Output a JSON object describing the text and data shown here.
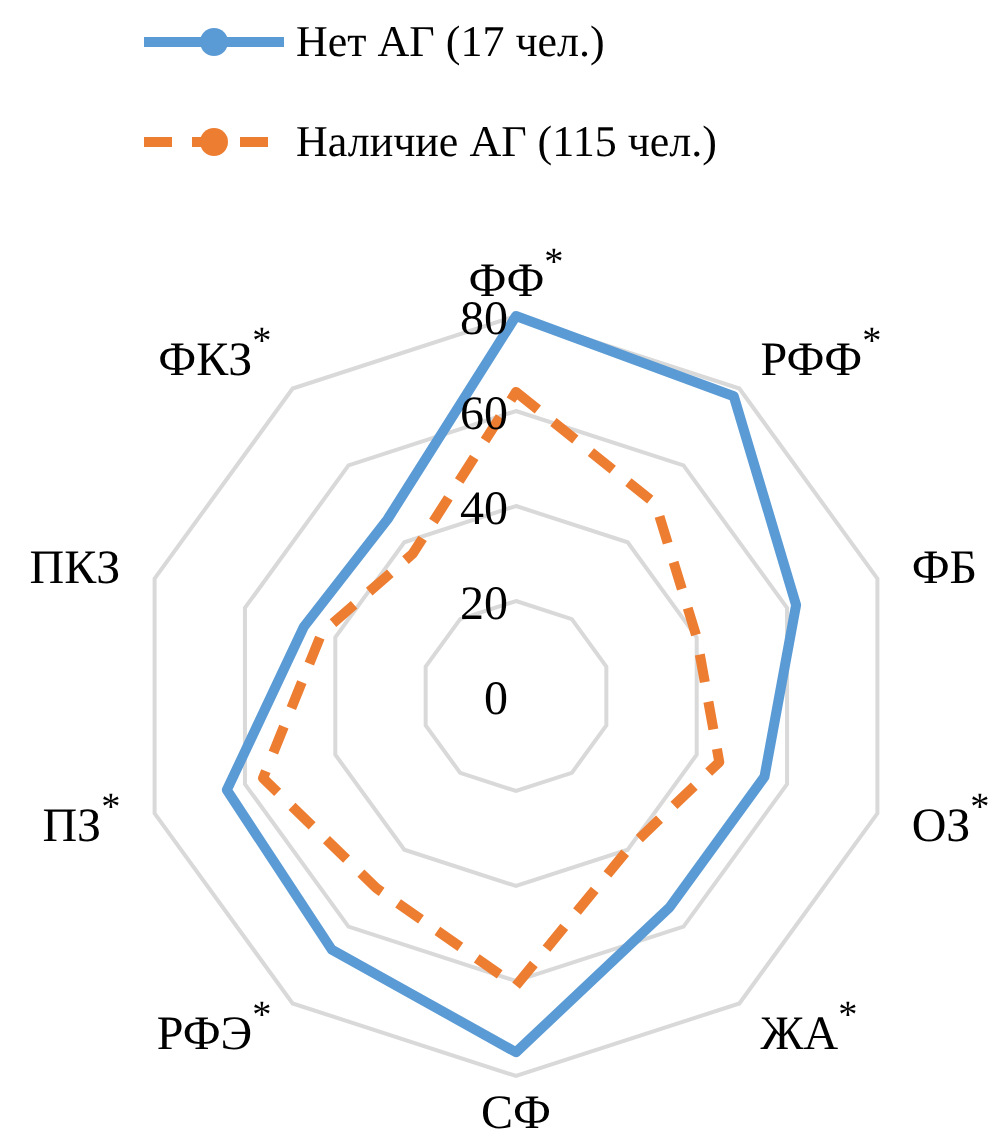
{
  "chart_data": {
    "type": "radar",
    "categories": [
      "ФФ$^{*}$",
      "РФФ$^{*}$",
      "ФБ",
      "ОЗ$^{*}$",
      "ЖА$^{*}$",
      "СФ",
      "РФЭ$^{*}$",
      "ПЗ$^{*}$",
      "ПКЗ",
      "ФКЗ$^{*}$"
    ],
    "series": [
      {
        "name": "Нет АГ (17 чел.)",
        "color": "#5b9bd5",
        "line_style": "solid",
        "values": [
          80,
          78,
          62,
          55,
          55,
          75,
          66,
          64,
          47,
          46
        ]
      },
      {
        "name": "Наличие АГ (115 чел.)",
        "color": "#ed7d31",
        "line_style": "dashed",
        "values": [
          64,
          50,
          40,
          45,
          40,
          61,
          50,
          56,
          43,
          37
        ]
      }
    ],
    "ylim": [
      0,
      80
    ],
    "yticks": [
      0,
      20,
      40,
      60,
      80
    ],
    "grid": true,
    "legend": "top",
    "marker": "circle"
  }
}
